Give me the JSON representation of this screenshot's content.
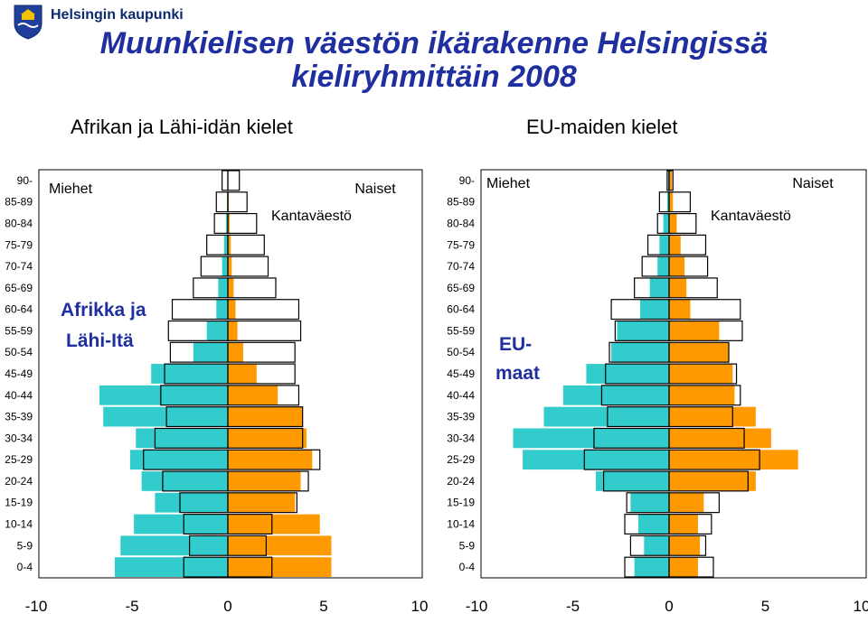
{
  "header": {
    "brand": "Helsingin kaupunki",
    "title_line1": "Muunkielisen väestön ikärakenne Helsingissä",
    "title_line2": "kieliryhmittäin 2008"
  },
  "colors": {
    "men": "#33cccc",
    "women": "#ff9900",
    "outline": "#000000",
    "title": "#1f2fa0",
    "panel_label": "#1f2fa0"
  },
  "chart_data": [
    {
      "type": "bar",
      "orientation": "horizontal-population-pyramid",
      "title": "Afrikan ja Lähi-idän kielet",
      "panel_label": "Afrikka ja Lähi-Itä",
      "age_groups": [
        "90-",
        "85-89",
        "80-84",
        "75-79",
        "70-74",
        "65-69",
        "60-64",
        "55-59",
        "50-54",
        "45-49",
        "40-44",
        "35-39",
        "30-34",
        "25-29",
        "20-24",
        "15-19",
        "10-14",
        "5-9",
        "0-4"
      ],
      "men_label": "Miehet",
      "women_label": "Naiset",
      "reference_label": "Kantaväestö",
      "xlim": [
        -10,
        10
      ],
      "xticks": [
        "-10",
        "-5",
        "0",
        "5",
        "10"
      ],
      "series": [
        {
          "name": "Miehet",
          "values": [
            0,
            0.05,
            0.1,
            0.2,
            0.3,
            0.5,
            0.6,
            1.1,
            1.8,
            4.0,
            6.7,
            6.5,
            4.8,
            5.1,
            4.5,
            3.8,
            4.9,
            5.6,
            5.9
          ]
        },
        {
          "name": "Naiset",
          "values": [
            0,
            0.05,
            0.1,
            0.15,
            0.2,
            0.3,
            0.4,
            0.5,
            0.8,
            1.5,
            2.6,
            3.9,
            4.1,
            4.4,
            3.8,
            3.5,
            4.8,
            5.4,
            5.4
          ]
        },
        {
          "name": "Kantaväestö (miehet)",
          "values": [
            0.3,
            0.6,
            0.7,
            1.1,
            1.4,
            1.8,
            2.9,
            3.1,
            3.0,
            3.3,
            3.5,
            3.2,
            3.8,
            4.4,
            3.4,
            2.5,
            2.3,
            2.0,
            2.3
          ]
        },
        {
          "name": "Kantaväestö (naiset)",
          "values": [
            0.6,
            1.0,
            1.5,
            1.9,
            2.1,
            2.5,
            3.7,
            3.8,
            3.5,
            3.5,
            3.7,
            3.9,
            3.9,
            4.8,
            4.2,
            3.6,
            2.3,
            2.0,
            2.3
          ]
        }
      ]
    },
    {
      "type": "bar",
      "orientation": "horizontal-population-pyramid",
      "title": "EU-maiden kielet",
      "panel_label": "EU-maat",
      "age_groups": [
        "90-",
        "85-89",
        "80-84",
        "75-79",
        "70-74",
        "65-69",
        "60-64",
        "55-59",
        "50-54",
        "45-49",
        "40-44",
        "35-39",
        "30-34",
        "25-29",
        "20-24",
        "15-19",
        "10-14",
        "5-9",
        "0-4"
      ],
      "men_label": "Miehet",
      "women_label": "Naiset",
      "reference_label": "Kantaväestö",
      "xlim": [
        -10,
        10
      ],
      "xticks": [
        "-10",
        "-5",
        "0",
        "5",
        "10"
      ],
      "series": [
        {
          "name": "Miehet",
          "values": [
            0.05,
            0.1,
            0.3,
            0.5,
            0.6,
            1.0,
            1.5,
            2.7,
            3.0,
            4.3,
            5.5,
            6.5,
            8.1,
            7.6,
            3.8,
            2.0,
            1.6,
            1.3,
            1.8
          ]
        },
        {
          "name": "Naiset",
          "values": [
            0.15,
            0.2,
            0.4,
            0.6,
            0.8,
            0.9,
            1.1,
            2.6,
            3.1,
            3.3,
            3.4,
            4.5,
            5.3,
            6.7,
            4.5,
            1.8,
            1.5,
            1.6,
            1.5
          ]
        },
        {
          "name": "Kantaväestö (miehet)",
          "values": [
            0.1,
            0.5,
            0.6,
            1.1,
            1.4,
            1.8,
            3.0,
            2.8,
            3.1,
            3.3,
            3.5,
            3.2,
            3.9,
            4.4,
            3.4,
            2.2,
            2.3,
            2.0,
            2.3
          ]
        },
        {
          "name": "Kantaväestö (naiset)",
          "values": [
            0.2,
            1.1,
            1.4,
            1.9,
            2.0,
            2.5,
            3.7,
            3.8,
            3.1,
            3.5,
            3.7,
            3.3,
            3.9,
            4.7,
            4.1,
            2.6,
            2.2,
            1.9,
            2.3
          ]
        }
      ]
    }
  ]
}
